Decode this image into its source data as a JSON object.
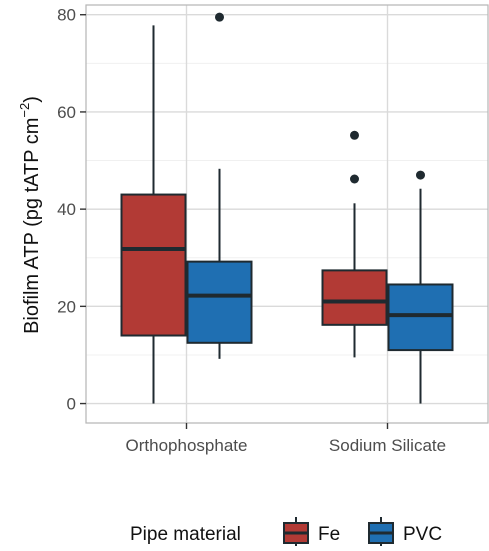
{
  "chart_data": {
    "type": "boxplot",
    "title": "",
    "xlabel": "",
    "ylabel": "Biofilm ATP (pg tATP cm−2)",
    "ylabel_main": "Biofilm ATP (pg tATP cm",
    "ylabel_sup": "−2",
    "ylabel_close": ")",
    "ylim": [
      -4,
      82
    ],
    "yticks": [
      0,
      20,
      40,
      60,
      80
    ],
    "grid": true,
    "legend": {
      "title": "Pipe material",
      "position": "bottom",
      "entries": [
        {
          "name": "Fe",
          "color": "#b23a35"
        },
        {
          "name": "PVC",
          "color": "#1f6fb2"
        }
      ]
    },
    "categories": [
      "Orthophosphate",
      "Sodium Silicate"
    ],
    "series": [
      {
        "name": "Fe",
        "color": "#b23a35",
        "boxes": [
          {
            "category": "Orthophosphate",
            "whisker_low": 0,
            "q1": 14,
            "median": 31.8,
            "q3": 43,
            "whisker_high": 77.8,
            "outliers": []
          },
          {
            "category": "Sodium Silicate",
            "whisker_low": 9.5,
            "q1": 16.2,
            "median": 21,
            "q3": 27.4,
            "whisker_high": 41.2,
            "outliers": [
              46.2,
              55.2
            ]
          }
        ]
      },
      {
        "name": "PVC",
        "color": "#1f6fb2",
        "boxes": [
          {
            "category": "Orthophosphate",
            "whisker_low": 9.2,
            "q1": 12.5,
            "median": 22.2,
            "q3": 29.2,
            "whisker_high": 48.3,
            "outliers": [
              79.5
            ]
          },
          {
            "category": "Sodium Silicate",
            "whisker_low": 0,
            "q1": 11,
            "median": 18.2,
            "q3": 24.5,
            "whisker_high": 44.2,
            "outliers": [
              47
            ]
          }
        ]
      }
    ]
  }
}
